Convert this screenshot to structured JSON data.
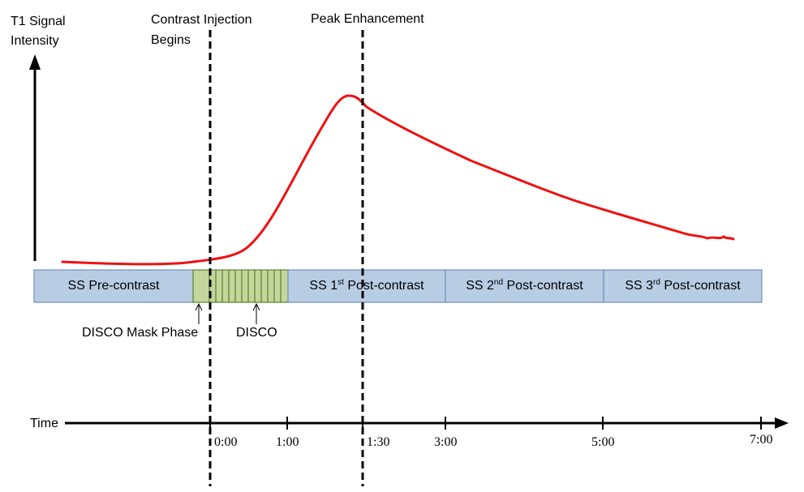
{
  "y_axis": {
    "label_line1": "T1 Signal",
    "label_line2": "Intensity"
  },
  "events": {
    "injection": {
      "line1": "Contrast Injection",
      "line2": "Begins"
    },
    "peak": {
      "line1": "Peak Enhancement"
    }
  },
  "segments": {
    "pre": {
      "label": "SS Pre-contrast"
    },
    "post1": {
      "prefix": "SS 1",
      "sup": "st",
      "suffix": " Post-contrast"
    },
    "post2": {
      "prefix": "SS 2",
      "sup": "nd",
      "suffix": " Post-contrast"
    },
    "post3": {
      "prefix": "SS 3",
      "sup": "rd",
      "suffix": " Post-contrast"
    }
  },
  "phase_labels": {
    "mask": "DISCO Mask Phase",
    "disco": "DISCO"
  },
  "time_axis": {
    "label": "Time",
    "ticks": [
      "0:00",
      "1:00",
      "1:30",
      "3:00",
      "5:00",
      "7:00"
    ]
  },
  "colors": {
    "curve": "#ee1111",
    "segment_fill": "#b8cce4",
    "segment_stroke": "#5a7fb0",
    "disco_fill": "#c3d69b",
    "disco_stroke": "#4a6a1a"
  }
}
